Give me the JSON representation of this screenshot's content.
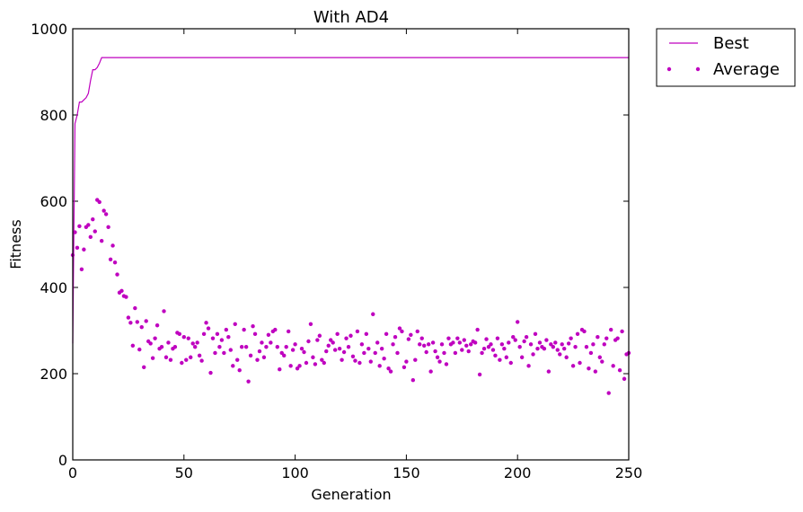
{
  "chart_data": {
    "type": "line",
    "title": "With AD4",
    "xlabel": "Generation",
    "ylabel": "Fitness",
    "xlim": [
      0,
      250
    ],
    "ylim": [
      0,
      1000
    ],
    "x_ticks": [
      "0",
      "50",
      "100",
      "150",
      "200",
      "250"
    ],
    "y_ticks": [
      "0",
      "200",
      "400",
      "600",
      "800",
      "1000"
    ],
    "grid": false,
    "legend_position": "outside top-right",
    "color": "#bf00bf",
    "series": [
      {
        "name": "Best",
        "style": "line",
        "x": [
          0,
          1,
          2,
          3,
          4,
          5,
          6,
          7,
          8,
          9,
          10,
          11,
          12,
          13,
          14,
          15,
          250
        ],
        "values": [
          270,
          780,
          800,
          830,
          830,
          835,
          840,
          850,
          880,
          905,
          905,
          910,
          920,
          933,
          933,
          933,
          933
        ]
      },
      {
        "name": "Average",
        "style": "points",
        "x": [
          0,
          1,
          2,
          3,
          4,
          5,
          6,
          7,
          8,
          9,
          10,
          11,
          12,
          13,
          14,
          15,
          16,
          17,
          18,
          19,
          20,
          21,
          22,
          23,
          24,
          25,
          26,
          27,
          28,
          29,
          30,
          31,
          32,
          33,
          34,
          35,
          36,
          37,
          38,
          39,
          40,
          41,
          42,
          43,
          44,
          45,
          46,
          47,
          48,
          49,
          50,
          51,
          52,
          53,
          54,
          55,
          56,
          57,
          58,
          59,
          60,
          61,
          62,
          63,
          64,
          65,
          66,
          67,
          68,
          69,
          70,
          71,
          72,
          73,
          74,
          75,
          76,
          77,
          78,
          79,
          80,
          81,
          82,
          83,
          84,
          85,
          86,
          87,
          88,
          89,
          90,
          91,
          92,
          93,
          94,
          95,
          96,
          97,
          98,
          99,
          100,
          101,
          102,
          103,
          104,
          105,
          106,
          107,
          108,
          109,
          110,
          111,
          112,
          113,
          114,
          115,
          116,
          117,
          118,
          119,
          120,
          121,
          122,
          123,
          124,
          125,
          126,
          127,
          128,
          129,
          130,
          131,
          132,
          133,
          134,
          135,
          136,
          137,
          138,
          139,
          140,
          141,
          142,
          143,
          144,
          145,
          146,
          147,
          148,
          149,
          150,
          151,
          152,
          153,
          154,
          155,
          156,
          157,
          158,
          159,
          160,
          161,
          162,
          163,
          164,
          165,
          166,
          167,
          168,
          169,
          170,
          171,
          172,
          173,
          174,
          175,
          176,
          177,
          178,
          179,
          180,
          181,
          182,
          183,
          184,
          185,
          186,
          187,
          188,
          189,
          190,
          191,
          192,
          193,
          194,
          195,
          196,
          197,
          198,
          199,
          200,
          201,
          202,
          203,
          204,
          205,
          206,
          207,
          208,
          209,
          210,
          211,
          212,
          213,
          214,
          215,
          216,
          217,
          218,
          219,
          220,
          221,
          222,
          223,
          224,
          225,
          226,
          227,
          228,
          229,
          230,
          231,
          232,
          233,
          234,
          235,
          236,
          237,
          238,
          239,
          240,
          241,
          242,
          243,
          244,
          245,
          246,
          247,
          248,
          249,
          250
        ],
        "values": [
          475,
          528,
          492,
          542,
          442,
          488,
          540,
          545,
          517,
          558,
          530,
          603,
          598,
          508,
          578,
          570,
          540,
          465,
          497,
          458,
          430,
          388,
          392,
          380,
          378,
          330,
          318,
          265,
          352,
          320,
          256,
          308,
          215,
          322,
          275,
          270,
          236,
          282,
          312,
          258,
          262,
          345,
          238,
          272,
          232,
          258,
          262,
          295,
          292,
          225,
          285,
          232,
          282,
          238,
          270,
          262,
          272,
          242,
          230,
          292,
          318,
          305,
          202,
          282,
          248,
          292,
          262,
          278,
          248,
          302,
          285,
          255,
          218,
          315,
          232,
          208,
          262,
          302,
          262,
          182,
          242,
          310,
          292,
          232,
          252,
          272,
          238,
          262,
          290,
          272,
          298,
          302,
          262,
          210,
          248,
          242,
          262,
          298,
          218,
          255,
          268,
          212,
          218,
          258,
          250,
          225,
          275,
          315,
          238,
          222,
          278,
          288,
          232,
          225,
          252,
          265,
          278,
          272,
          255,
          292,
          258,
          232,
          250,
          282,
          262,
          288,
          240,
          230,
          298,
          225,
          268,
          248,
          292,
          258,
          228,
          338,
          248,
          272,
          218,
          258,
          235,
          292,
          212,
          205,
          268,
          285,
          248,
          305,
          298,
          215,
          228,
          280,
          290,
          185,
          232,
          298,
          268,
          282,
          265,
          250,
          268,
          205,
          272,
          252,
          238,
          228,
          268,
          248,
          222,
          282,
          268,
          272,
          248,
          282,
          272,
          255,
          278,
          265,
          252,
          268,
          275,
          272,
          302,
          198,
          248,
          258,
          280,
          262,
          268,
          255,
          242,
          282,
          232,
          268,
          258,
          238,
          272,
          225,
          285,
          278,
          320,
          262,
          238,
          275,
          285,
          218,
          268,
          245,
          292,
          258,
          272,
          262,
          258,
          278,
          205,
          268,
          262,
          272,
          255,
          245,
          268,
          258,
          238,
          270,
          282,
          218,
          262,
          292,
          225,
          302,
          298,
          262,
          212,
          248,
          268,
          205,
          285,
          238,
          228,
          268,
          282,
          155,
          302,
          218,
          278,
          282,
          208,
          298,
          188,
          245,
          248
        ]
      }
    ]
  }
}
